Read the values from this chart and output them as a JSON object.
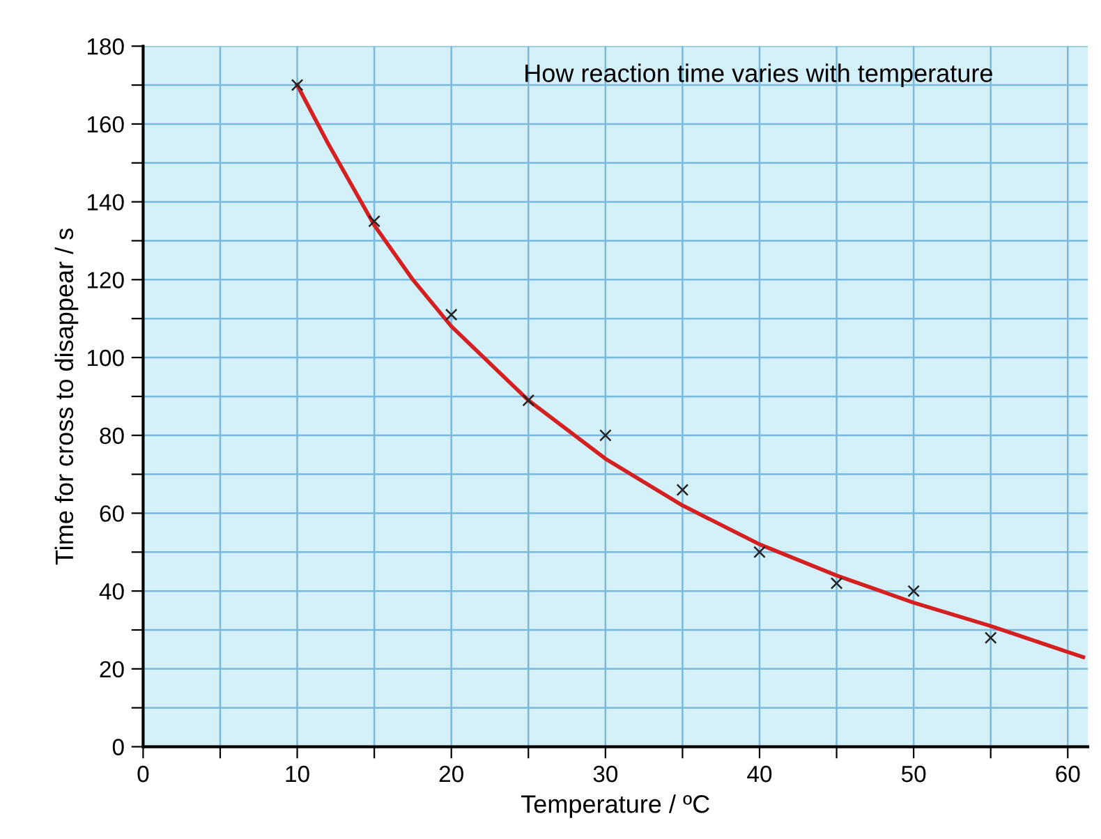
{
  "chart_data": {
    "type": "scatter",
    "title": "How reaction time varies with temperature",
    "xlabel": "Temperature / ºC",
    "ylabel": "Time for cross to disappear / s",
    "series": [
      {
        "color": "#222222",
        "marker": "cross",
        "x": [
          10,
          15,
          20,
          25,
          30,
          35,
          40,
          45,
          50,
          55
        ],
        "values": [
          170,
          135,
          111,
          89,
          80,
          66,
          50,
          42,
          40,
          28
        ]
      },
      {
        "type": "line",
        "color": "#d42020",
        "marker": "none",
        "line_style": "solid",
        "x": [
          10,
          12,
          15,
          17.5,
          20,
          25,
          30,
          35,
          40,
          45,
          50,
          55,
          61
        ],
        "values": [
          170,
          155,
          134,
          120,
          108,
          89,
          74,
          62,
          52,
          44,
          37,
          31,
          23
        ]
      }
    ],
    "xlim": [
      0,
      61.3
    ],
    "ylim": [
      0,
      180
    ],
    "xticks": [
      0,
      {
        "value": 5,
        "label": null
      },
      10,
      {
        "value": 15,
        "label": null
      },
      20,
      {
        "value": 25,
        "label": null
      },
      30,
      {
        "value": 35,
        "label": null
      },
      40,
      {
        "value": 45,
        "label": null
      },
      50,
      {
        "value": 55,
        "label": null
      },
      60
    ],
    "yticks": [
      0,
      {
        "value": 10,
        "label": null
      },
      20,
      {
        "value": 30,
        "label": null
      },
      40,
      {
        "value": 50,
        "label": null
      },
      60,
      {
        "value": 70,
        "label": null
      },
      80,
      {
        "value": 90,
        "label": null
      },
      100,
      {
        "value": 110,
        "label": null
      },
      120,
      {
        "value": 130,
        "label": null
      },
      140,
      {
        "value": 150,
        "label": null
      },
      160,
      {
        "value": 170,
        "label": null
      },
      180
    ],
    "grid": true
  }
}
